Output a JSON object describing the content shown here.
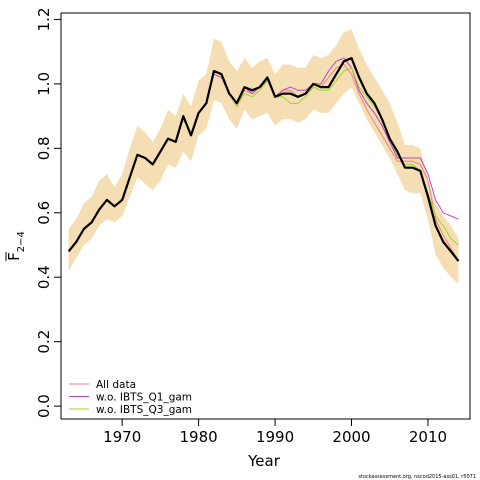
{
  "chart_data": {
    "type": "line",
    "xlabel": "Year",
    "ylabel": {
      "main": "F",
      "subscript": "2−4"
    },
    "xlim": [
      1962,
      2015.5
    ],
    "ylim": [
      -0.04,
      1.22
    ],
    "xticks": [
      "1970",
      "1980",
      "1990",
      "2000",
      "2010"
    ],
    "yticks": [
      "0.0",
      "0.2",
      "0.4",
      "0.6",
      "0.8",
      "1.0",
      "1.2"
    ],
    "legend_position": "bottom-left",
    "band_color": "#f5deb3",
    "x": [
      1963,
      1964,
      1965,
      1966,
      1967,
      1968,
      1969,
      1970,
      1971,
      1972,
      1973,
      1974,
      1975,
      1976,
      1977,
      1978,
      1979,
      1980,
      1981,
      1982,
      1983,
      1984,
      1985,
      1986,
      1987,
      1988,
      1989,
      1990,
      1991,
      1992,
      1993,
      1994,
      1995,
      1996,
      1997,
      1998,
      1999,
      2000,
      2001,
      2002,
      2003,
      2004,
      2005,
      2006,
      2007,
      2008,
      2009,
      2010,
      2011,
      2012,
      2013,
      2014
    ],
    "band": {
      "lower": [
        0.42,
        0.46,
        0.5,
        0.52,
        0.56,
        0.58,
        0.57,
        0.59,
        0.65,
        0.71,
        0.69,
        0.67,
        0.7,
        0.75,
        0.74,
        0.79,
        0.76,
        0.84,
        0.86,
        0.95,
        0.94,
        0.89,
        0.86,
        0.92,
        0.89,
        0.9,
        0.91,
        0.87,
        0.89,
        0.89,
        0.88,
        0.89,
        0.92,
        0.91,
        0.91,
        0.94,
        0.97,
        0.99,
        0.94,
        0.89,
        0.85,
        0.81,
        0.77,
        0.72,
        0.67,
        0.66,
        0.66,
        0.58,
        0.47,
        0.43,
        0.4,
        0.38
      ],
      "upper": [
        0.55,
        0.58,
        0.63,
        0.65,
        0.7,
        0.72,
        0.68,
        0.72,
        0.8,
        0.87,
        0.85,
        0.82,
        0.86,
        0.92,
        0.9,
        0.97,
        0.93,
        1.01,
        1.03,
        1.14,
        1.13,
        1.07,
        1.04,
        1.08,
        1.05,
        1.07,
        1.08,
        1.03,
        1.06,
        1.06,
        1.05,
        1.05,
        1.09,
        1.08,
        1.09,
        1.12,
        1.16,
        1.17,
        1.11,
        1.06,
        1.02,
        0.98,
        0.94,
        0.88,
        0.81,
        0.81,
        0.8,
        0.7,
        0.63,
        0.59,
        0.56,
        0.52
      ]
    },
    "series": [
      {
        "name": "All data",
        "color": "#f08080",
        "values": [
          0.48,
          0.51,
          0.55,
          0.57,
          0.61,
          0.64,
          0.62,
          0.64,
          0.71,
          0.78,
          0.77,
          0.75,
          0.79,
          0.83,
          0.82,
          0.9,
          0.84,
          0.91,
          0.94,
          1.03,
          1.02,
          0.97,
          0.93,
          0.98,
          0.97,
          0.99,
          1.01,
          0.96,
          0.98,
          0.98,
          0.96,
          0.97,
          1.0,
          0.99,
          1.02,
          1.05,
          1.06,
          1.03,
          0.97,
          0.92,
          0.88,
          0.84,
          0.8,
          0.76,
          0.76,
          0.76,
          0.75,
          0.7,
          0.58,
          0.53,
          0.49,
          0.45
        ]
      },
      {
        "name": "w.o. IBTS_Q1_gam",
        "color": "#b845c8",
        "values": [
          0.48,
          0.51,
          0.55,
          0.57,
          0.61,
          0.64,
          0.62,
          0.64,
          0.71,
          0.78,
          0.77,
          0.75,
          0.79,
          0.83,
          0.82,
          0.9,
          0.84,
          0.91,
          0.94,
          1.03,
          1.02,
          0.97,
          0.94,
          0.99,
          0.97,
          0.99,
          1.01,
          0.96,
          0.98,
          0.99,
          0.98,
          0.98,
          1.0,
          1.0,
          1.04,
          1.07,
          1.08,
          1.05,
          0.98,
          0.94,
          0.91,
          0.87,
          0.82,
          0.77,
          0.77,
          0.77,
          0.77,
          0.72,
          0.64,
          0.6,
          0.59,
          0.58
        ]
      },
      {
        "name": "w.o. IBTS_Q3_gam",
        "color": "#9ad430",
        "values": [
          0.48,
          0.51,
          0.55,
          0.57,
          0.61,
          0.64,
          0.62,
          0.64,
          0.71,
          0.78,
          0.77,
          0.75,
          0.79,
          0.83,
          0.82,
          0.89,
          0.84,
          0.91,
          0.94,
          1.04,
          1.03,
          0.97,
          0.93,
          0.97,
          0.96,
          0.98,
          1.01,
          0.96,
          0.96,
          0.94,
          0.94,
          0.96,
          0.99,
          0.98,
          0.98,
          1.01,
          1.04,
          1.05,
          0.99,
          0.96,
          0.93,
          0.89,
          0.83,
          0.78,
          0.75,
          0.75,
          0.73,
          0.66,
          0.59,
          0.56,
          0.52,
          0.5
        ]
      },
      {
        "name": "",
        "color": "#000000",
        "width": 2.2,
        "values": [
          0.48,
          0.51,
          0.55,
          0.57,
          0.61,
          0.64,
          0.62,
          0.64,
          0.71,
          0.78,
          0.77,
          0.75,
          0.79,
          0.83,
          0.82,
          0.9,
          0.84,
          0.91,
          0.94,
          1.04,
          1.03,
          0.97,
          0.94,
          0.99,
          0.98,
          0.99,
          1.02,
          0.96,
          0.97,
          0.97,
          0.96,
          0.97,
          1.0,
          0.99,
          0.99,
          1.03,
          1.07,
          1.08,
          1.02,
          0.97,
          0.94,
          0.89,
          0.83,
          0.79,
          0.74,
          0.74,
          0.73,
          0.65,
          0.56,
          0.51,
          0.48,
          0.45
        ]
      }
    ],
    "footnote": "stockassessment.org, nscod2015-ass01, r5071"
  }
}
